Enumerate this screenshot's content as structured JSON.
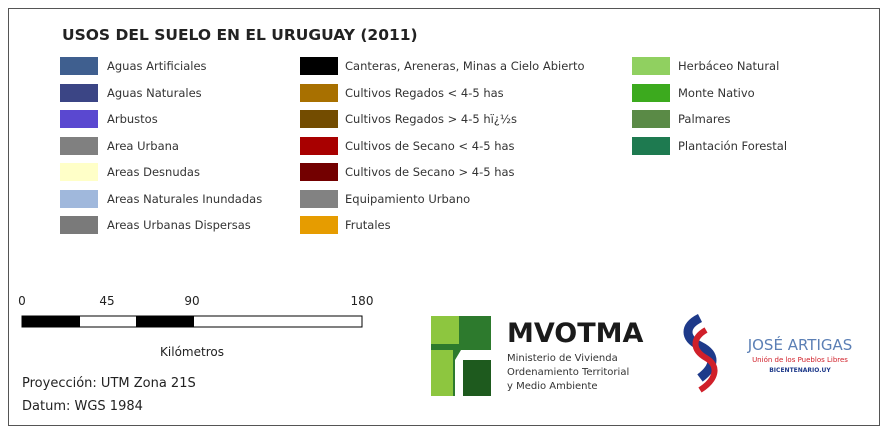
{
  "title": "USOS DEL SUELO EN EL URUGUAY (2011)",
  "legend": {
    "columns": [
      [
        {
          "label": "Aguas Artificiales",
          "color": "#3f5f8f"
        },
        {
          "label": "Aguas Naturales",
          "color": "#3b4585"
        },
        {
          "label": "Arbustos",
          "color": "#5a48d0"
        },
        {
          "label": "Area Urbana",
          "color": "#808080"
        },
        {
          "label": "Areas Desnudas",
          "color": "#ffffc8"
        },
        {
          "label": "Areas Naturales Inundadas",
          "color": "#a0b8dc"
        },
        {
          "label": "Areas Urbanas Dispersas",
          "color": "#7a7a7a"
        }
      ],
      [
        {
          "label": "Canteras, Areneras, Minas a Cielo Abierto",
          "color": "#000000"
        },
        {
          "label": "Cultivos Regados < 4-5 has",
          "color": "#a87000"
        },
        {
          "label": "Cultivos Regados > 4-5 hï¿½s",
          "color": "#734c00"
        },
        {
          "label": "Cultivos de Secano < 4-5 has",
          "color": "#a80000"
        },
        {
          "label": "Cultivos de Secano > 4-5 has",
          "color": "#730000"
        },
        {
          "label": "Equipamiento Urbano",
          "color": "#828282"
        },
        {
          "label": "Frutales",
          "color": "#e69c00"
        }
      ],
      [
        {
          "label": "Herbáceo Natural",
          "color": "#90d060"
        },
        {
          "label": "Monte Nativo",
          "color": "#3caa1e"
        },
        {
          "label": "Palmares",
          "color": "#5a8a46"
        },
        {
          "label": "Plantación Forestal",
          "color": "#1e7a50"
        }
      ]
    ]
  },
  "scale": {
    "ticks": [
      0,
      45,
      90,
      180
    ],
    "unit": "Kilómetros"
  },
  "projection": "Proyección: UTM Zona 21S",
  "datum": "Datum: WGS 1984",
  "logo1": {
    "name": "MVOTMA",
    "lines": [
      "Ministerio de Vivienda",
      "Ordenamiento Territorial",
      "y Medio Ambiente"
    ]
  },
  "logo2": {
    "name": "JOSÉ ARTIGAS",
    "line1": "Unión de los Pueblos Libres",
    "line2": "BICENTENARIO.UY"
  }
}
